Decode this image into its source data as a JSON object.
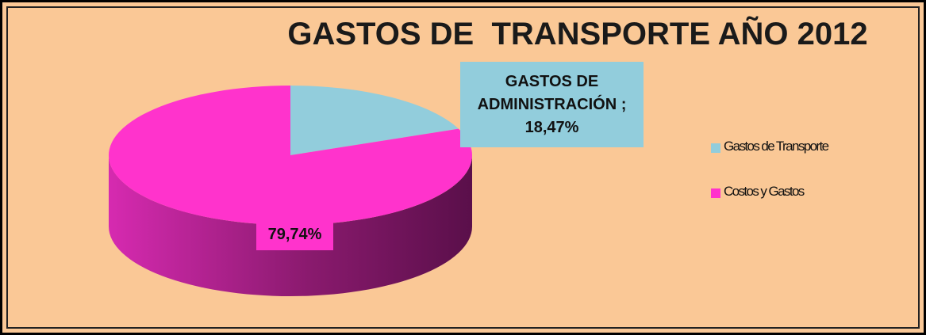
{
  "chart_data": {
    "type": "pie3d",
    "title": "GASTOS DE  TRANSPORTE AÑO 2012",
    "categories": [
      "Gastos de Transporte",
      "Costos y Gastos"
    ],
    "values": [
      18.47,
      79.74
    ],
    "value_labels": [
      "GASTOS DE ADMINISTRACIÓN ; 18,47%",
      "79,74%"
    ],
    "colors": [
      "#92CDDC",
      "#FF33CC"
    ],
    "legend": "right"
  }
}
